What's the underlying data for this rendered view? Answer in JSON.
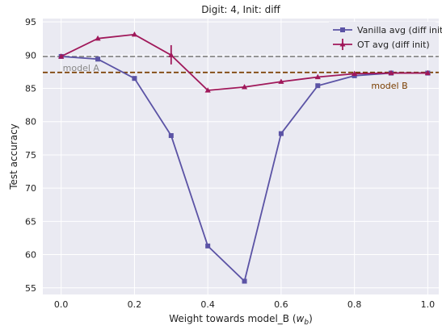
{
  "chart_data": {
    "type": "line",
    "title": "Digit: 4, Init: diff",
    "xlabel": "Weight towards model_B (",
    "xlabel_math": "w",
    "xlabel_sub": "b",
    "xlabel_close": ")",
    "ylabel": "Test accuracy",
    "xlim": [
      -0.05,
      1.03
    ],
    "ylim": [
      54,
      95.5
    ],
    "xticks": [
      0.0,
      0.2,
      0.4,
      0.6,
      0.8,
      1.0
    ],
    "xtick_labels": [
      "0.0",
      "0.2",
      "0.4",
      "0.6",
      "0.8",
      "1.0"
    ],
    "yticks": [
      55,
      60,
      65,
      70,
      75,
      80,
      85,
      90,
      95
    ],
    "ytick_labels": [
      "55",
      "60",
      "65",
      "70",
      "75",
      "80",
      "85",
      "90",
      "95"
    ],
    "grid": true,
    "legend_position": "top-right",
    "x": [
      0.0,
      0.1,
      0.2,
      0.3,
      0.4,
      0.5,
      0.6,
      0.7,
      0.8,
      0.9,
      1.0
    ],
    "series": [
      {
        "name": "Vanilla avg (diff init)",
        "color": "#5b53a5",
        "marker": "square",
        "values": [
          89.8,
          89.4,
          86.5,
          77.9,
          61.3,
          56.0,
          78.2,
          85.4,
          86.9,
          87.3,
          87.3
        ]
      },
      {
        "name": "OT avg (diff init)",
        "color": "#a0185a",
        "marker": "triangle",
        "values": [
          89.8,
          92.5,
          93.1,
          90.0,
          84.7,
          85.2,
          86.0,
          86.7,
          87.2,
          87.3,
          87.3
        ],
        "error_bars": [
          {
            "x": 0.3,
            "low": 88.6,
            "high": 91.5
          }
        ]
      }
    ],
    "reference_lines": [
      {
        "label": "model A",
        "y": 89.8,
        "color": "#888888",
        "label_color": "#888888"
      },
      {
        "label": "model B",
        "y": 87.4,
        "color": "#7a3e00",
        "label_color": "#7a3e00"
      }
    ],
    "style": {
      "plot_background": "#eaeaf2",
      "grid_color": "#ffffff"
    }
  }
}
